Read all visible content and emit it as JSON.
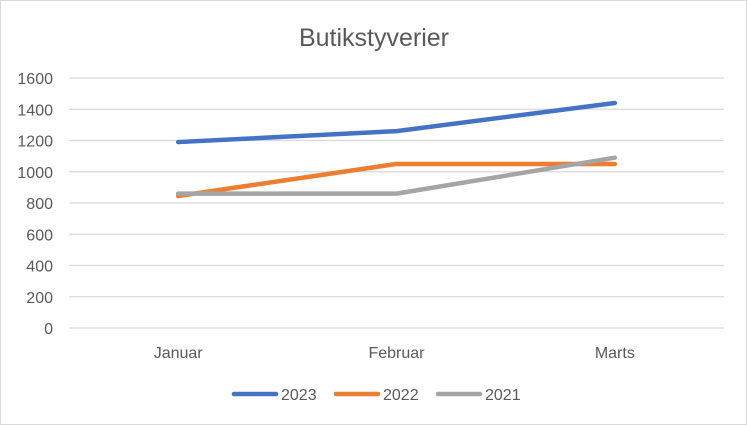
{
  "chart_data": {
    "type": "line",
    "title": "Butikstyverier",
    "categories": [
      "Januar",
      "Februar",
      "Marts"
    ],
    "ylim": [
      0,
      1600
    ],
    "yticks": [
      0,
      200,
      400,
      600,
      800,
      1000,
      1200,
      1400,
      1600
    ],
    "grid": true,
    "legend_position": "bottom",
    "series": [
      {
        "name": "2023",
        "values": [
          1190,
          1260,
          1440
        ],
        "color": "#4472c4"
      },
      {
        "name": "2022",
        "values": [
          845,
          1050,
          1050
        ],
        "color": "#ed7d31"
      },
      {
        "name": "2021",
        "values": [
          860,
          860,
          1090
        ],
        "color": "#a5a5a5"
      }
    ]
  }
}
